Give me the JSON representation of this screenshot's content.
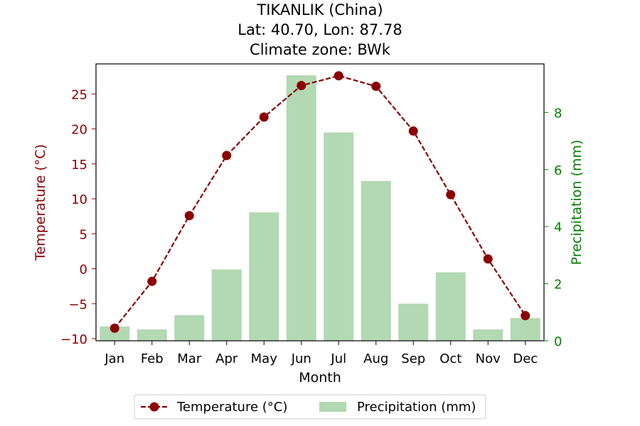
{
  "chart_data": {
    "type": "bar",
    "title_lines": [
      "TIKANLIK (China)",
      "Lat: 40.70, Lon: 87.78",
      "Climate zone: BWk"
    ],
    "xlabel": "Month",
    "ylabel_left": "Temperature (°C)",
    "ylabel_right": "Precipitation (mm)",
    "categories": [
      "Jan",
      "Feb",
      "Mar",
      "Apr",
      "May",
      "Jun",
      "Jul",
      "Aug",
      "Sep",
      "Oct",
      "Nov",
      "Dec"
    ],
    "left_ylim": [
      -10.3,
      29.3
    ],
    "left_ticks": [
      -10,
      -5,
      0,
      5,
      10,
      15,
      20,
      25
    ],
    "left_tick_labels": [
      "−10",
      "−5",
      "0",
      "5",
      "10",
      "15",
      "20",
      "25"
    ],
    "right_ylim": [
      0,
      9.7
    ],
    "right_ticks": [
      0,
      2,
      4,
      6,
      8
    ],
    "right_tick_labels": [
      "0",
      "2",
      "4",
      "6",
      "8"
    ],
    "series": [
      {
        "name": "Temperature (°C)",
        "kind": "line",
        "axis": "left",
        "color": "#8b0000",
        "values": [
          -8.5,
          -1.8,
          7.6,
          16.2,
          21.7,
          26.2,
          27.6,
          26.1,
          19.7,
          10.6,
          1.4,
          -6.7
        ]
      },
      {
        "name": "Precipitation (mm)",
        "kind": "bar",
        "axis": "right",
        "color": "#b2d9b2",
        "values": [
          0.5,
          0.4,
          0.9,
          2.5,
          4.5,
          9.3,
          7.3,
          5.6,
          1.3,
          2.4,
          0.4,
          0.8
        ]
      }
    ],
    "left_axis_color": "#8b0000",
    "right_axis_color": "#008000",
    "legend_placement": "bottom-center",
    "grid": false
  }
}
